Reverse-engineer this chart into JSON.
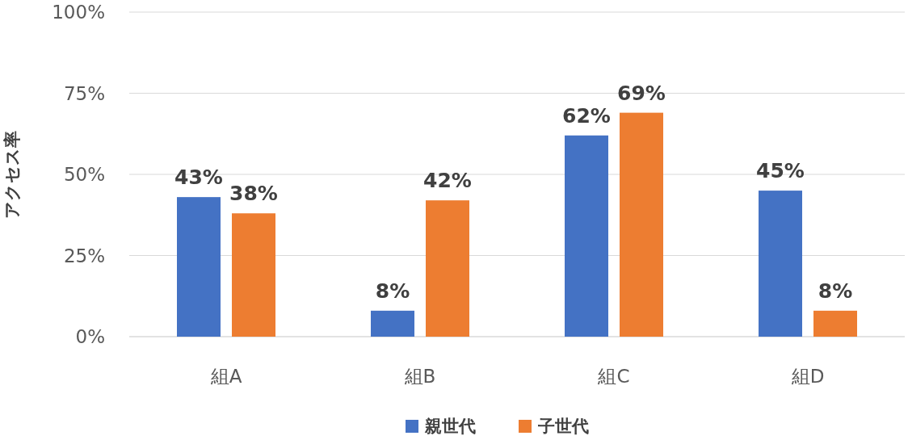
{
  "chart_data": {
    "type": "bar",
    "ylabel": "アクセス率",
    "categories": [
      "組A",
      "組B",
      "組C",
      "組D"
    ],
    "series": [
      {
        "name": "親世代",
        "color": "#4472c4",
        "values": [
          43,
          8,
          62,
          45
        ],
        "value_labels": [
          "43%",
          "8%",
          "62%",
          "45%"
        ]
      },
      {
        "name": "子世代",
        "color": "#ed7d31",
        "values": [
          38,
          42,
          69,
          8
        ],
        "value_labels": [
          "38%",
          "42%",
          "69%",
          "8%"
        ]
      }
    ],
    "ylim": [
      0,
      100
    ],
    "yticks": [
      {
        "value": 0,
        "label": "0%"
      },
      {
        "value": 25,
        "label": "25%"
      },
      {
        "value": 50,
        "label": "50%"
      },
      {
        "value": 75,
        "label": "75%"
      },
      {
        "value": 100,
        "label": "100%"
      }
    ],
    "grid": "y",
    "legend": "bottom"
  }
}
